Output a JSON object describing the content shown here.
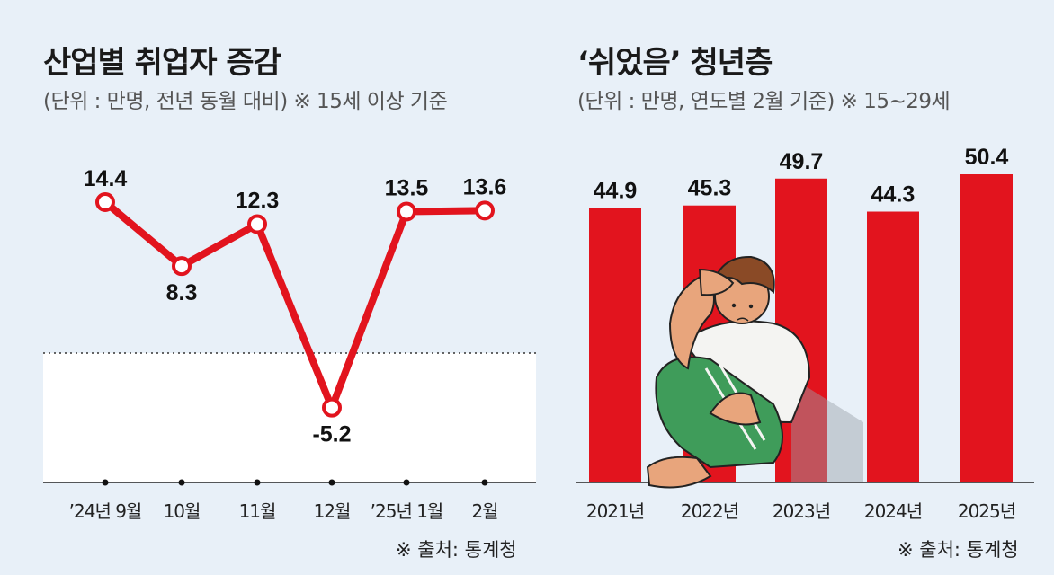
{
  "left": {
    "title": "산업별 취업자 증감",
    "subtitle": "(단위 : 만명, 전년 동월 대비) ※ 15세 이상 기준",
    "source": "※ 출처: 통계청"
  },
  "right": {
    "title": "‘쉬었음’ 청년층",
    "subtitle": "(단위 : 만명, 연도별 2월 기준) ※ 15~29세",
    "source": "※ 출처: 통계청"
  },
  "colors": {
    "accent": "#e2141e",
    "background": "#e8f0f8",
    "panel": "#ffffff"
  },
  "chart_data": [
    {
      "type": "line",
      "title": "산업별 취업자 증감",
      "categories": [
        "’24년 9월",
        "10월",
        "11월",
        "12월",
        "’25년 1월",
        "2월"
      ],
      "values": [
        14.4,
        8.3,
        12.3,
        -5.2,
        13.5,
        13.6
      ],
      "value_labels": [
        "14.4",
        "8.3",
        "12.3",
        "-5.2",
        "13.5",
        "13.6"
      ],
      "ylim": [
        -8,
        18
      ],
      "zero_line": "dotted"
    },
    {
      "type": "bar",
      "title": "‘쉬었음’ 청년층",
      "categories": [
        "2021년",
        "2022년",
        "2023년",
        "2024년",
        "2025년"
      ],
      "values": [
        44.9,
        45.3,
        49.7,
        44.3,
        50.4
      ],
      "value_labels": [
        "44.9",
        "45.3",
        "49.7",
        "44.3",
        "50.4"
      ],
      "ylim": [
        0,
        51
      ]
    }
  ]
}
